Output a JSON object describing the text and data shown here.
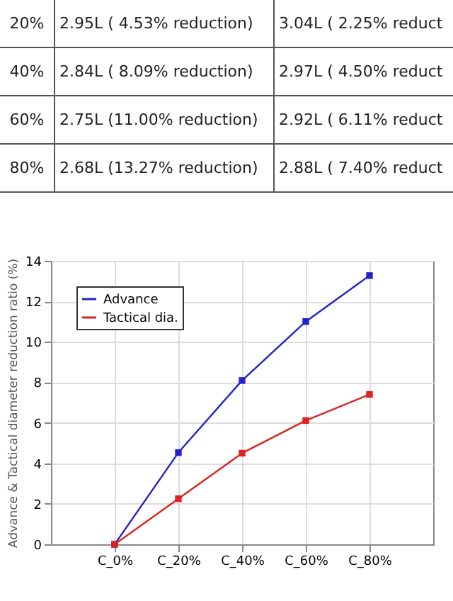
{
  "chart_data": {
    "type": "line",
    "categories": [
      "C_0%",
      "C_20%",
      "C_40%",
      "C_60%",
      "C_80%"
    ],
    "series": [
      {
        "name": "Advance",
        "color": "#2222cc",
        "values": [
          0,
          4.53,
          8.09,
          11.0,
          13.27
        ]
      },
      {
        "name": "Tactical dia.",
        "color": "#dd2222",
        "values": [
          0,
          2.25,
          4.5,
          6.11,
          7.4
        ]
      }
    ],
    "ylabel": "Advance & Tactical diameter reduction ratio (%)",
    "ylim": [
      0,
      14
    ],
    "yticks": [
      0,
      2,
      4,
      6,
      8,
      10,
      12,
      14
    ],
    "grid": true,
    "legend": "top left",
    "marker": "square",
    "annotations": [
      "20%",
      "2.95L ( 4.53% reduction)",
      "3.04L ( 2.25% reduct",
      "40%",
      "2.84L ( 8.09% reduction)",
      "2.97L ( 4.50% reduct",
      "60%",
      "2.75L (11.00% reduction)",
      "2.92L ( 6.11% reduct",
      "80%",
      "2.68L (13.27% reduction)",
      "2.88L ( 7.40% reduct"
    ]
  }
}
